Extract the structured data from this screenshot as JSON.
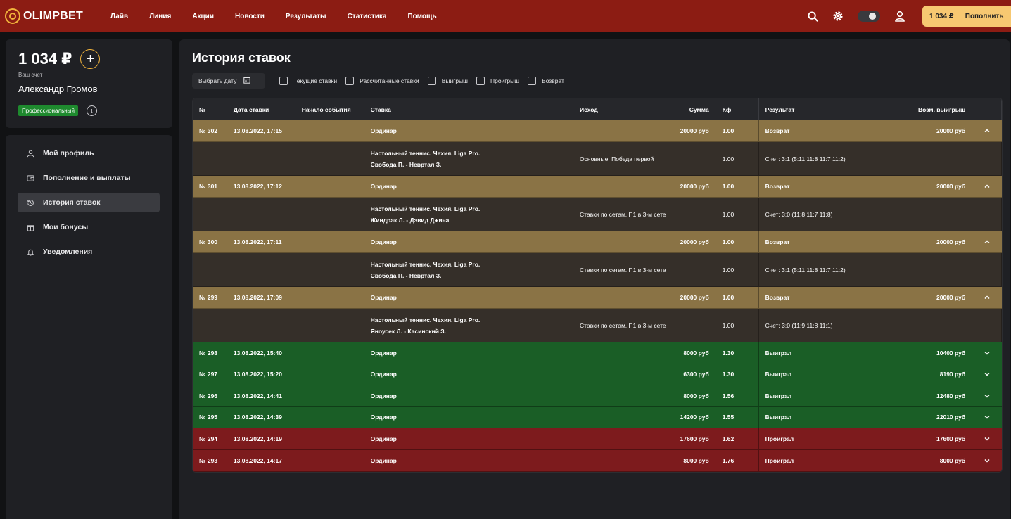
{
  "header": {
    "logo_text": "OLIMPBET",
    "nav": [
      "Лайв",
      "Линия",
      "Акции",
      "Новости",
      "Результаты",
      "Статистика",
      "Помощь"
    ],
    "balance": "1 034 ₽",
    "deposit_label": "Пополнить",
    "icons": [
      "search-icon",
      "gear-icon",
      "theme-toggle",
      "user-icon"
    ]
  },
  "account": {
    "balance": "1 034 ₽",
    "caption": "Ваш счет",
    "name": "Александр Громов",
    "status": "Профессиональный"
  },
  "menu": [
    {
      "label": "Мой профиль",
      "icon": "user-icon",
      "active": false
    },
    {
      "label": "Пополнение и выплаты",
      "icon": "wallet-icon",
      "active": false
    },
    {
      "label": "История ставок",
      "icon": "history-icon",
      "active": true
    },
    {
      "label": "Мои бонусы",
      "icon": "gift-icon",
      "active": false
    },
    {
      "label": "Уведомления",
      "icon": "bell-icon",
      "active": false
    }
  ],
  "main": {
    "title": "История ставок",
    "date_button": "Выбрать дату",
    "filters": [
      "Текущие ставки",
      "Рассчитанные ставки",
      "Выигрыш",
      "Проигрыш",
      "Возврат"
    ]
  },
  "table": {
    "headers": {
      "num": "№",
      "date": "Дата ставки",
      "start": "Начало события",
      "bet": "Ставка",
      "outcome": "Исход",
      "sum": "Сумма",
      "kf": "Кф",
      "result": "Результат",
      "payout": "Возм. выигрыш"
    },
    "rows": [
      {
        "num": "№ 302",
        "date": "13.08.2022, 17:15",
        "start": "",
        "bet": "Ординар",
        "sum": "20000 руб",
        "kf": "1.00",
        "result": "Возврат",
        "payout": "20000 руб",
        "status": "ret",
        "expanded": true,
        "detail": {
          "event_line1": "Настольный теннис. Чехия. Liga Pro.",
          "event_line2": "Свобода П. - Невртал З.",
          "outcome": "Основные. Победа первой",
          "kf": "1.00",
          "score": "Счет: 3:1 (5:11 11:8 11:7 11:2)"
        }
      },
      {
        "num": "№ 301",
        "date": "13.08.2022, 17:12",
        "start": "",
        "bet": "Ординар",
        "sum": "20000 руб",
        "kf": "1.00",
        "result": "Возврат",
        "payout": "20000 руб",
        "status": "ret",
        "expanded": true,
        "detail": {
          "event_line1": "Настольный теннис. Чехия. Liga Pro.",
          "event_line2": "Жиндрак Л. - Дэвид Джича",
          "outcome": "Ставки по сетам. П1 в 3-м сете",
          "kf": "1.00",
          "score": "Счет: 3:0 (11:8 11:7 11:8)"
        }
      },
      {
        "num": "№ 300",
        "date": "13.08.2022, 17:11",
        "start": "",
        "bet": "Ординар",
        "sum": "20000 руб",
        "kf": "1.00",
        "result": "Возврат",
        "payout": "20000 руб",
        "status": "ret",
        "expanded": true,
        "detail": {
          "event_line1": "Настольный теннис. Чехия. Liga Pro.",
          "event_line2": "Свобода П. - Невртал З.",
          "outcome": "Ставки по сетам. П1 в 3-м сете",
          "kf": "1.00",
          "score": "Счет: 3:1 (5:11 11:8 11:7 11:2)"
        }
      },
      {
        "num": "№ 299",
        "date": "13.08.2022, 17:09",
        "start": "",
        "bet": "Ординар",
        "sum": "20000 руб",
        "kf": "1.00",
        "result": "Возврат",
        "payout": "20000 руб",
        "status": "ret",
        "expanded": true,
        "detail": {
          "event_line1": "Настольный теннис. Чехия. Liga Pro.",
          "event_line2": "Яноусек Л. - Касинский З.",
          "outcome": "Ставки по сетам. П1 в 3-м сете",
          "kf": "1.00",
          "score": "Счет: 3:0 (11:9 11:8 11:1)"
        }
      },
      {
        "num": "№ 298",
        "date": "13.08.2022, 15:40",
        "start": "",
        "bet": "Ординар",
        "sum": "8000 руб",
        "kf": "1.30",
        "result": "Выиграл",
        "payout": "10400 руб",
        "status": "win",
        "expanded": false
      },
      {
        "num": "№ 297",
        "date": "13.08.2022, 15:20",
        "start": "",
        "bet": "Ординар",
        "sum": "6300 руб",
        "kf": "1.30",
        "result": "Выиграл",
        "payout": "8190 руб",
        "status": "win",
        "expanded": false
      },
      {
        "num": "№ 296",
        "date": "13.08.2022, 14:41",
        "start": "",
        "bet": "Ординар",
        "sum": "8000 руб",
        "kf": "1.56",
        "result": "Выиграл",
        "payout": "12480 руб",
        "status": "win",
        "expanded": false
      },
      {
        "num": "№ 295",
        "date": "13.08.2022, 14:39",
        "start": "",
        "bet": "Ординар",
        "sum": "14200 руб",
        "kf": "1.55",
        "result": "Выиграл",
        "payout": "22010 руб",
        "status": "win",
        "expanded": false
      },
      {
        "num": "№ 294",
        "date": "13.08.2022, 14:19",
        "start": "",
        "bet": "Ординар",
        "sum": "17600 руб",
        "kf": "1.62",
        "result": "Проиграл",
        "payout": "17600 руб",
        "status": "lose",
        "expanded": false
      },
      {
        "num": "№ 293",
        "date": "13.08.2022, 14:17",
        "start": "",
        "bet": "Ординар",
        "sum": "8000 руб",
        "kf": "1.76",
        "result": "Проиграл",
        "payout": "8000 руб",
        "status": "lose",
        "expanded": false
      }
    ]
  },
  "colors": {
    "header": "#8c1c13",
    "accent": "#f2b43c",
    "return_row": "#8a7345",
    "detail_row": "#352f29",
    "win_row": "#1a5e26",
    "lose_row": "#7d1b1d"
  }
}
